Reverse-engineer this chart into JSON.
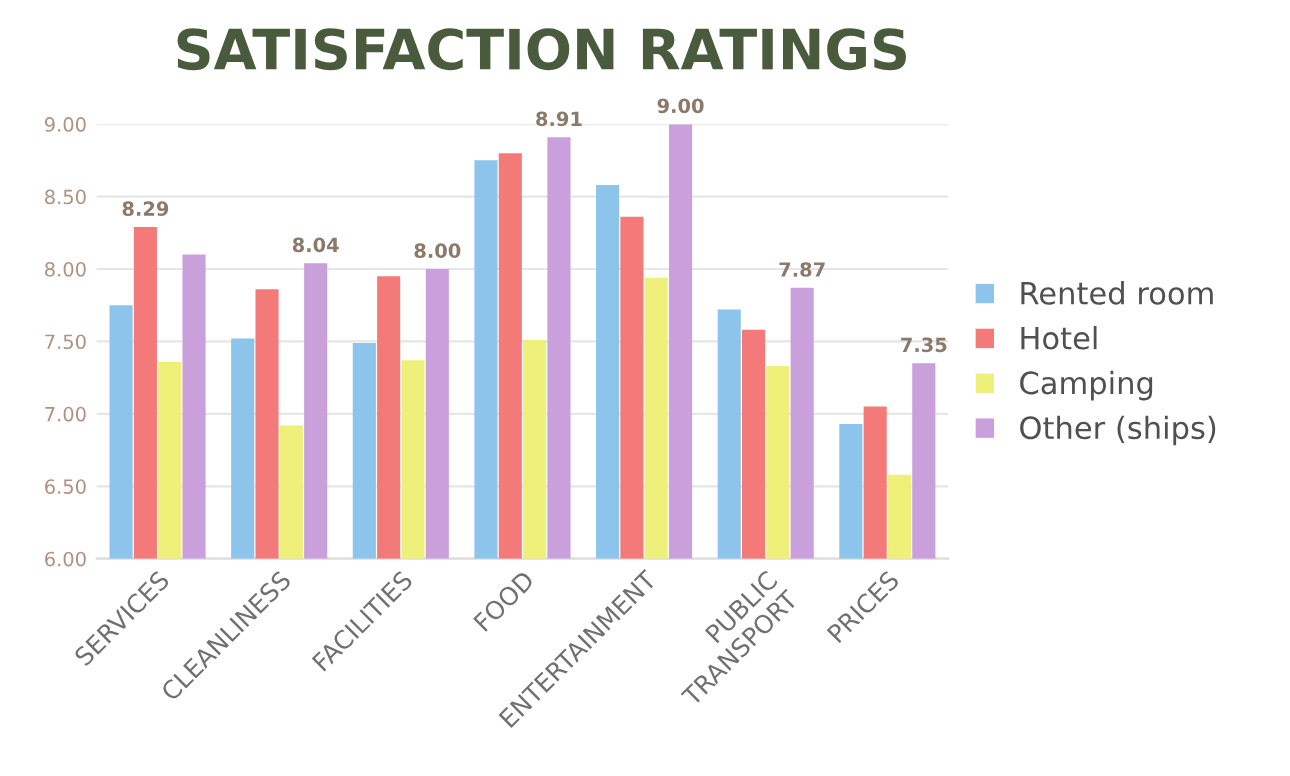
{
  "chart_data": {
    "type": "bar",
    "title": "SATISFACTION RATINGS",
    "categories": [
      "SERVICES",
      "CLEANLINESS",
      "FACILITIES",
      "FOOD",
      "ENTERTAINMENT",
      "PUBLIC\nTRANSPORT",
      "PRICES"
    ],
    "series": [
      {
        "name": "Rented room",
        "color": "#8cc4ec",
        "values": [
          7.75,
          7.52,
          7.49,
          8.75,
          8.58,
          7.72,
          6.93
        ]
      },
      {
        "name": "Hotel",
        "color": "#f47a7a",
        "values": [
          8.29,
          7.86,
          7.95,
          8.8,
          8.36,
          7.58,
          7.05
        ],
        "value_labels": [
          "8.29",
          null,
          null,
          null,
          null,
          null,
          null
        ]
      },
      {
        "name": "Camping",
        "color": "#eef07a",
        "values": [
          7.36,
          6.92,
          7.37,
          7.51,
          7.94,
          7.33,
          6.58
        ]
      },
      {
        "name": "Other (ships)",
        "color": "#c9a0dc",
        "values": [
          8.1,
          8.04,
          8.0,
          8.91,
          9.0,
          7.87,
          7.35
        ],
        "value_labels": [
          null,
          "8.04",
          "8.00",
          "8.91",
          "9.00",
          "7.87",
          "7.35"
        ]
      }
    ],
    "ylim": [
      6,
      9
    ],
    "yticks": [
      {
        "value": 6,
        "label": "6.00"
      },
      {
        "value": 6.5,
        "label": "6.50"
      },
      {
        "value": 7,
        "label": "7.00"
      },
      {
        "value": 7.5,
        "label": "7.50"
      },
      {
        "value": 8,
        "label": "8.00"
      },
      {
        "value": 8.5,
        "label": "8.50"
      },
      {
        "value": 9,
        "label": "9.00"
      }
    ],
    "grid": "y",
    "legend": "right"
  }
}
